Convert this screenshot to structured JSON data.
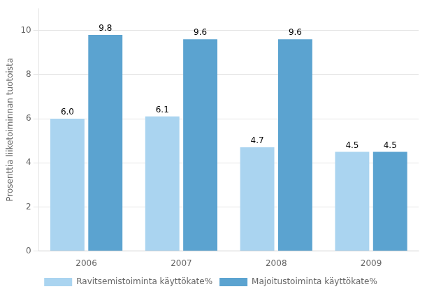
{
  "chart_data": {
    "type": "bar",
    "categories": [
      "2006",
      "2007",
      "2008",
      "2009"
    ],
    "series": [
      {
        "name": "Ravitsemistoiminta käyttökate%",
        "color": "#aad4f0",
        "values": [
          6.0,
          6.1,
          4.7,
          4.5
        ],
        "value_labels": [
          "6.0",
          "6.1",
          "4.7",
          "4.5"
        ]
      },
      {
        "name": "Majoitustoiminta käyttökate%",
        "color": "#5ba3d0",
        "values": [
          9.8,
          9.6,
          9.6,
          4.5
        ],
        "value_labels": [
          "9.8",
          "9.6",
          "9.6",
          "4.5"
        ]
      }
    ],
    "ylabel": "Prosenttia liiketoiminnan tuotoista",
    "ylim": [
      0,
      11
    ],
    "yticks": [
      0,
      2,
      4,
      6,
      8,
      10
    ],
    "grid": true,
    "legend": "bottom",
    "data_labels": true
  }
}
